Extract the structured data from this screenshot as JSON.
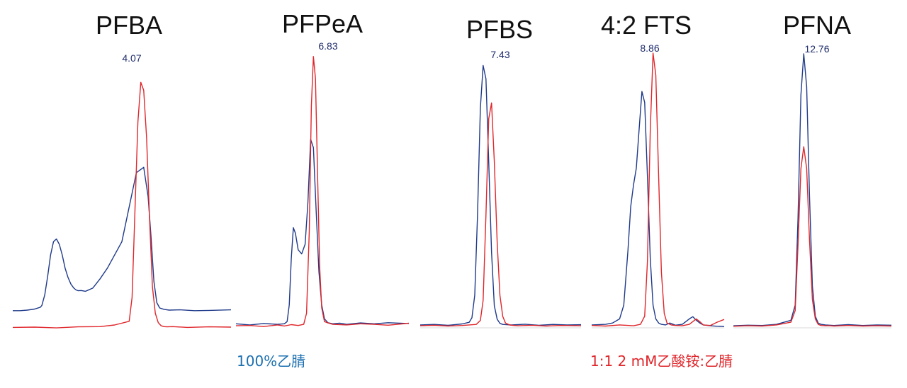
{
  "colors": {
    "acetonitrile": "#1f3a8a",
    "buffer": "#e0262b",
    "rt_label": "#1f2d6b",
    "baseline": "#d9d9d9",
    "legend_acn": "#1b6fb0",
    "legend_mix": "#e0262b"
  },
  "legend": {
    "acetonitrile": "100%乙腈",
    "buffer": "1:1 2 mM乙酸铵:乙腈"
  },
  "chart_data": [
    {
      "type": "line",
      "title": "PFBA",
      "retention_time_label": "4.07",
      "rt": 4.07,
      "ylim": [
        0,
        100
      ],
      "series": [
        {
          "key": "acetonitrile",
          "name": "100%乙腈",
          "x": [
            0.0,
            0.1,
            0.2,
            0.3,
            0.38,
            0.4,
            0.44,
            0.48,
            0.52,
            0.56,
            0.6,
            0.64,
            0.68,
            0.72,
            0.76,
            0.8,
            0.84,
            0.87,
            0.9,
            0.94,
            1.0,
            1.1,
            1.2,
            1.3,
            1.5,
            1.7,
            1.8,
            1.86,
            1.9,
            1.94,
            1.98,
            2.02,
            2.08,
            2.15,
            2.3,
            2.5,
            2.7,
            3.0
          ],
          "y": [
            7,
            7,
            7.2,
            7.6,
            8.3,
            9,
            13,
            20,
            28,
            33,
            34,
            32,
            28,
            23,
            19.5,
            17,
            15.5,
            14.8,
            14.5,
            14.6,
            14.3,
            15.5,
            19,
            23,
            33,
            59,
            61,
            50,
            35,
            18,
            10,
            8,
            7.5,
            7.2,
            7.3,
            7.0,
            7.1,
            7.3
          ]
        },
        {
          "key": "buffer",
          "name": "1:1 2 mM乙酸铵:乙腈",
          "x": [
            0.0,
            0.3,
            0.6,
            0.9,
            1.2,
            1.4,
            1.6,
            1.64,
            1.68,
            1.72,
            1.76,
            1.8,
            1.84,
            1.88,
            1.92,
            1.96,
            2.0,
            2.04,
            2.08,
            2.12,
            2.2,
            2.4,
            2.7,
            3.0
          ],
          "y": [
            0.7,
            0.8,
            0.5,
            0.9,
            1.0,
            1.6,
            3,
            12,
            45,
            78,
            93,
            90,
            72,
            42,
            16,
            6,
            2.5,
            1.3,
            1.0,
            0.9,
            1.0,
            0.7,
            0.9,
            0.8
          ]
        }
      ]
    },
    {
      "type": "line",
      "title": "PFPeA",
      "retention_time_label": "6.83",
      "rt": 6.83,
      "ylim": [
        0,
        100
      ],
      "series": [
        {
          "key": "acetonitrile",
          "name": "100%乙腈",
          "x": [
            0.0,
            0.2,
            0.4,
            0.6,
            0.7,
            0.74,
            0.77,
            0.8,
            0.83,
            0.86,
            0.9,
            0.95,
            1.0,
            1.04,
            1.08,
            1.12,
            1.16,
            1.2,
            1.24,
            1.28,
            1.33,
            1.4,
            1.5,
            1.6,
            1.8,
            2.0,
            2.2,
            2.5
          ],
          "y": [
            1.2,
            0.8,
            1.3,
            1.0,
            1.2,
            2,
            8,
            25,
            36,
            34,
            28,
            26.5,
            30,
            45,
            68,
            65,
            42,
            20,
            8,
            3,
            1.6,
            1.2,
            1.4,
            1.0,
            1.5,
            1.2,
            1.6,
            1.3
          ]
        },
        {
          "key": "buffer",
          "name": "1:1 2 mM乙酸铵:乙腈",
          "x": [
            0.0,
            0.2,
            0.4,
            0.6,
            0.7,
            0.8,
            0.9,
            0.98,
            1.02,
            1.06,
            1.09,
            1.12,
            1.15,
            1.18,
            1.21,
            1.24,
            1.28,
            1.33,
            1.4,
            1.6,
            1.8,
            2.0,
            2.2,
            2.5
          ],
          "y": [
            0.5,
            0.6,
            0.2,
            0.8,
            0.4,
            0.9,
            0.6,
            1.0,
            5,
            35,
            80,
            98,
            90,
            55,
            22,
            7,
            2,
            1.5,
            1.0,
            0.8,
            1.2,
            1.0,
            0.7,
            1.4
          ]
        }
      ]
    },
    {
      "type": "line",
      "title": "PFBS",
      "retention_time_label": "7.43",
      "rt": 7.43,
      "ylim": [
        0,
        100
      ],
      "series": [
        {
          "key": "acetonitrile",
          "name": "100%乙腈",
          "x": [
            0.0,
            0.2,
            0.4,
            0.6,
            0.7,
            0.74,
            0.78,
            0.82,
            0.86,
            0.9,
            0.94,
            0.98,
            1.02,
            1.06,
            1.1,
            1.14,
            1.18,
            1.24,
            1.3,
            1.5,
            1.7,
            1.9,
            2.1,
            2.3
          ],
          "y": [
            0.8,
            1.0,
            0.7,
            1.2,
            1.8,
            3.5,
            12,
            42,
            82,
            98,
            93,
            62,
            28,
            8,
            3,
            1.4,
            1.0,
            0.9,
            0.8,
            1.1,
            0.7,
            1.0,
            0.8,
            0.9
          ]
        },
        {
          "key": "buffer",
          "name": "1:1 2 mM乙酸铵:乙腈",
          "x": [
            0.0,
            0.2,
            0.4,
            0.6,
            0.8,
            0.86,
            0.9,
            0.94,
            0.98,
            1.02,
            1.06,
            1.1,
            1.14,
            1.18,
            1.22,
            1.28,
            1.34,
            1.4,
            1.6,
            1.8,
            2.0,
            2.3
          ],
          "y": [
            0.5,
            0.7,
            0.4,
            0.6,
            1.0,
            2.5,
            10,
            42,
            78,
            84,
            62,
            32,
            12,
            4,
            1.5,
            0.8,
            0.6,
            0.5,
            0.7,
            0.4,
            0.6,
            0.5
          ]
        }
      ]
    },
    {
      "type": "line",
      "title": "4:2 FTS",
      "retention_time_label": "8.86",
      "rt": 8.86,
      "ylim": [
        0,
        100
      ],
      "series": [
        {
          "key": "acetonitrile",
          "name": "100%乙腈",
          "x": [
            0.0,
            0.2,
            0.3,
            0.4,
            0.46,
            0.52,
            0.56,
            0.6,
            0.64,
            0.68,
            0.72,
            0.76,
            0.8,
            0.84,
            0.88,
            0.92,
            0.96,
            1.0,
            1.06,
            1.12,
            1.2,
            1.3,
            1.4,
            1.45,
            1.5,
            1.55,
            1.6,
            1.7,
            1.8,
            1.9
          ],
          "y": [
            0.8,
            1.0,
            1.5,
            3,
            8,
            28,
            44,
            52,
            58,
            72,
            86,
            82,
            55,
            25,
            8,
            3,
            1.5,
            1.0,
            0.8,
            1.5,
            0.7,
            1.0,
            3.0,
            3.8,
            2.5,
            1.5,
            0.8,
            0.5,
            0.3,
            0.2
          ]
        },
        {
          "key": "buffer",
          "name": "1:1 2 mM乙酸铵:乙腈",
          "x": [
            0.0,
            0.2,
            0.4,
            0.6,
            0.7,
            0.76,
            0.8,
            0.84,
            0.88,
            0.92,
            0.96,
            1.0,
            1.04,
            1.08,
            1.14,
            1.2,
            1.3,
            1.4,
            1.5,
            1.55,
            1.6,
            1.7,
            1.8,
            1.9
          ],
          "y": [
            0.6,
            0.4,
            0.8,
            0.5,
            1.0,
            4,
            24,
            72,
            100,
            92,
            55,
            20,
            5,
            1.5,
            0.8,
            0.6,
            0.5,
            1.0,
            3.0,
            2.0,
            0.8,
            0.6,
            1.8,
            2.8
          ]
        }
      ]
    },
    {
      "type": "line",
      "title": "PFNA",
      "retention_time_label": "12.76",
      "rt": 12.76,
      "ylim": [
        0,
        100
      ],
      "series": [
        {
          "key": "acetonitrile",
          "name": "100%乙腈",
          "x": [
            0.0,
            0.2,
            0.4,
            0.6,
            0.8,
            0.86,
            0.9,
            0.94,
            0.98,
            1.02,
            1.06,
            1.1,
            1.14,
            1.18,
            1.22,
            1.28,
            1.34,
            1.4,
            1.6,
            1.8,
            2.0,
            2.2
          ],
          "y": [
            0.5,
            0.7,
            0.6,
            1.0,
            2.5,
            8,
            40,
            85,
            100,
            88,
            48,
            15,
            4,
            1.5,
            1.0,
            0.8,
            0.7,
            0.6,
            0.9,
            0.6,
            0.8,
            0.7
          ]
        },
        {
          "key": "buffer",
          "name": "1:1 2 mM乙酸铵:乙腈",
          "x": [
            0.0,
            0.2,
            0.4,
            0.6,
            0.8,
            0.86,
            0.9,
            0.94,
            0.98,
            1.02,
            1.06,
            1.1,
            1.14,
            1.18,
            1.22,
            1.28,
            1.34,
            1.4,
            1.6,
            1.8,
            2.0,
            2.2
          ],
          "y": [
            0.3,
            0.5,
            0.4,
            0.8,
            1.8,
            6,
            30,
            58,
            66,
            58,
            32,
            10,
            3,
            1.0,
            0.6,
            0.5,
            0.5,
            0.4,
            0.6,
            0.4,
            0.5,
            0.4
          ]
        }
      ]
    }
  ]
}
